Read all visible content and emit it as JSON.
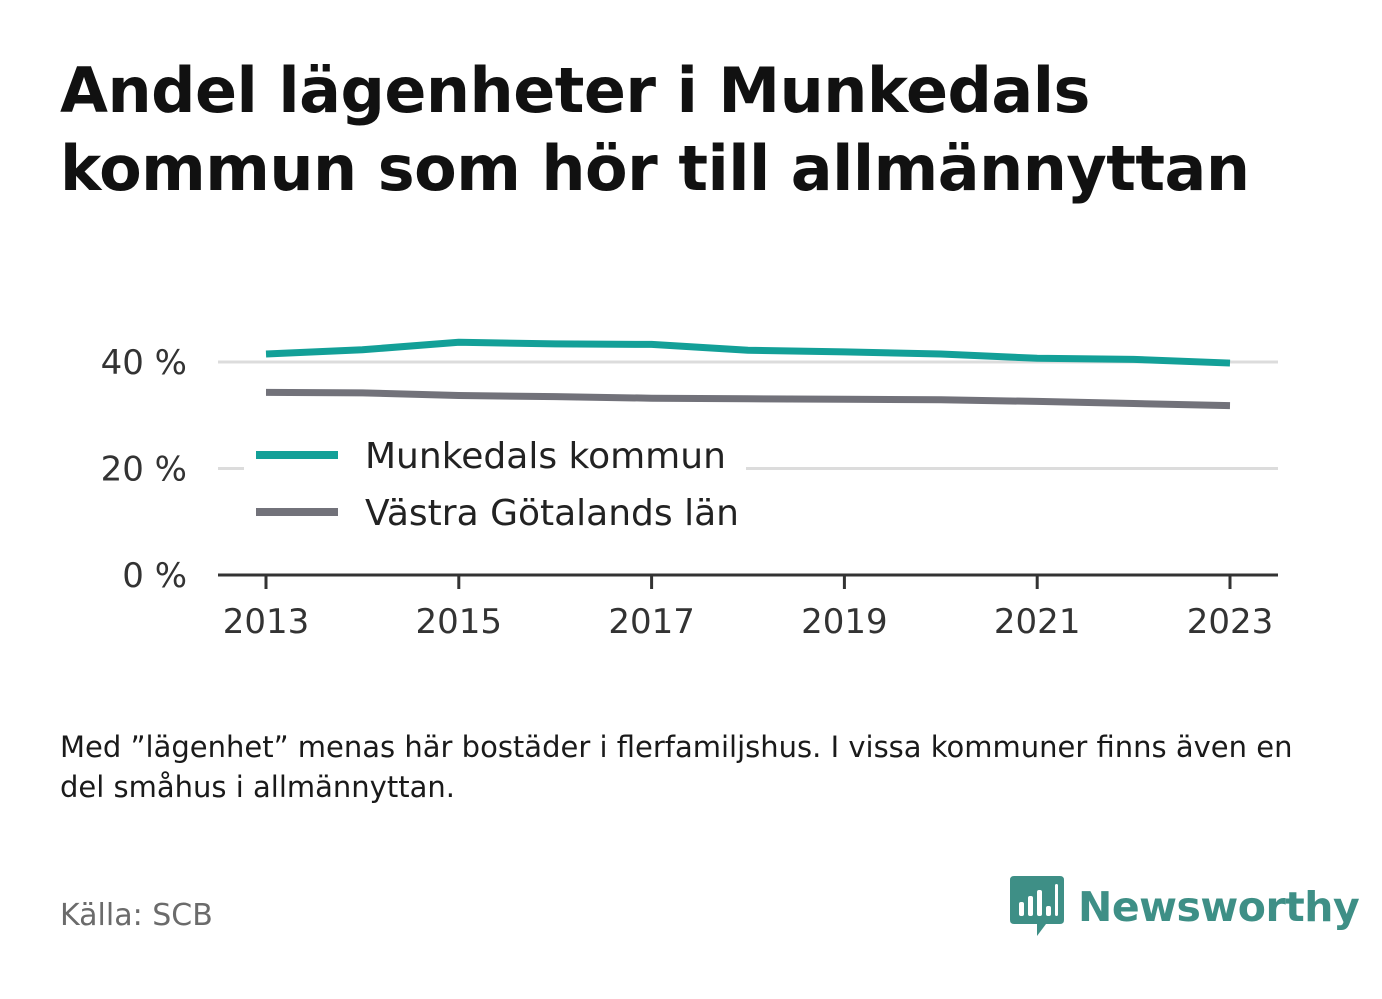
{
  "title": "Andel lägenheter i Munkedals kommun som hör till allmännyttan",
  "note": "Med ”lägenhet” menas här bostäder i flerfamiljshus. I vissa kommuner finns även en del småhus i allmännyttan.",
  "source": "Källa: SCB",
  "brand": {
    "name": "Newsworthy",
    "icon": "bar-chart-speech-bubble-icon",
    "color": "#3e8f86"
  },
  "colors": {
    "munkedal": "#13a098",
    "vastra": "#72727a",
    "grid": "#dcdcdc",
    "axis": "#333333"
  },
  "chart_data": {
    "type": "line",
    "x": [
      2013,
      2014,
      2015,
      2016,
      2017,
      2018,
      2019,
      2020,
      2021,
      2022,
      2023
    ],
    "x_ticks": [
      "2013",
      "2015",
      "2017",
      "2019",
      "2021",
      "2023"
    ],
    "y_ticks": [
      "0 %",
      "20 %",
      "40 %"
    ],
    "y_tick_values": [
      0,
      20,
      40
    ],
    "ylim": [
      0,
      40
    ],
    "grid": true,
    "legend_position": "left-center",
    "series": [
      {
        "name": "Munkedals kommun",
        "values": [
          41.5,
          42.3,
          43.7,
          43.4,
          43.3,
          42.2,
          41.9,
          41.5,
          40.7,
          40.5,
          39.8
        ]
      },
      {
        "name": "Västra Götalands län",
        "values": [
          34.3,
          34.2,
          33.7,
          33.5,
          33.2,
          33.1,
          33.0,
          32.9,
          32.6,
          32.2,
          31.8
        ]
      }
    ]
  }
}
